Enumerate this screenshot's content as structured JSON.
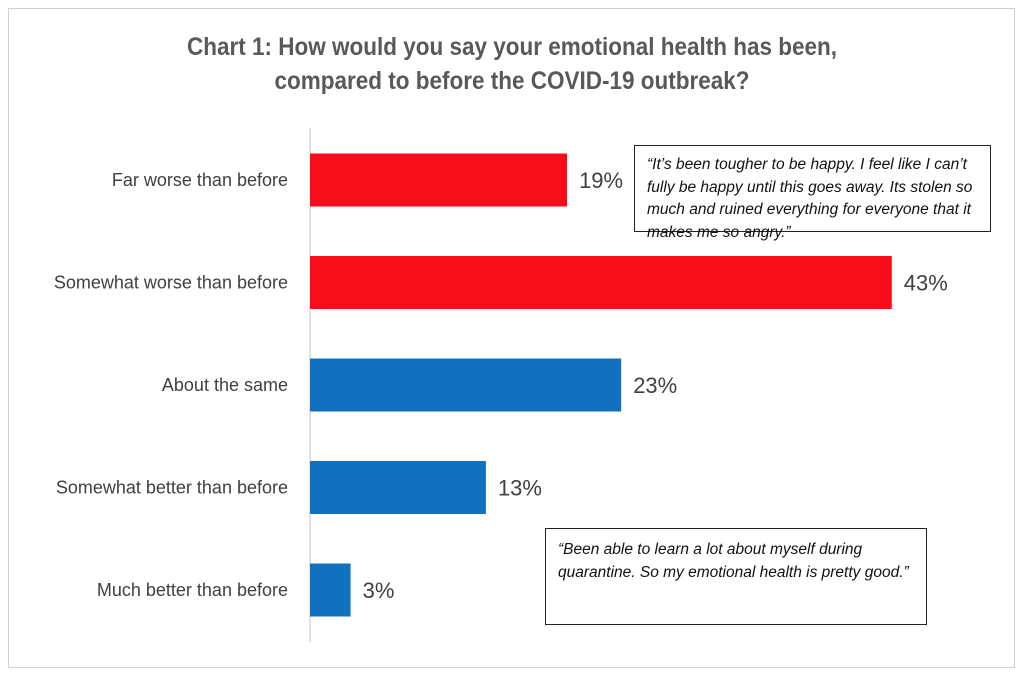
{
  "chart_data": {
    "type": "bar",
    "orientation": "horizontal",
    "title_line1": "Chart 1: How would you say your emotional health has been,",
    "title_line2": "compared to before the COVID-19 outbreak?",
    "categories": [
      "Far worse than before",
      "Somewhat worse than before",
      "About the same",
      "Somewhat better than before",
      "Much better than before"
    ],
    "values": [
      19,
      43,
      23,
      13,
      3
    ],
    "labels": [
      "19%",
      "43%",
      "23%",
      "13%",
      "3%"
    ],
    "colors": [
      "#f70d1a",
      "#f70d1a",
      "#1271be",
      "#1271be",
      "#1271be"
    ],
    "xlim": [
      0,
      50
    ],
    "unit": "%"
  },
  "quotes": [
    "“It’s been tougher to be happy. I feel like I can’t fully be happy until this goes away. Its stolen so much and ruined everything for everyone that it makes me so angry.”",
    "“Been able to learn a lot about myself during quarantine. So my emotional health is pretty good.”"
  ]
}
